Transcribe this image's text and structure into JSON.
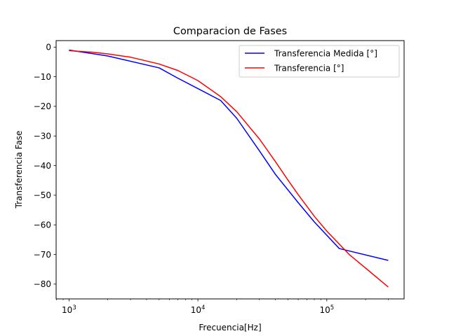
{
  "chart_data": {
    "type": "line",
    "title": "Comparacion de Fases",
    "xlabel": "Frecuencia[Hz]",
    "ylabel": "Transferencia Fase",
    "x_scale": "log",
    "xlim": [
      794,
      398000
    ],
    "ylim": [
      -85,
      2.2
    ],
    "x_ticks": [
      {
        "value": 1000,
        "base": "10",
        "exp": "3"
      },
      {
        "value": 10000,
        "base": "10",
        "exp": "4"
      },
      {
        "value": 100000,
        "base": "10",
        "exp": "5"
      }
    ],
    "y_ticks": [
      {
        "value": 0,
        "label": "0"
      },
      {
        "value": -10,
        "label": "−10"
      },
      {
        "value": -20,
        "label": "−20"
      },
      {
        "value": -30,
        "label": "−30"
      },
      {
        "value": -40,
        "label": "−40"
      },
      {
        "value": -50,
        "label": "−50"
      },
      {
        "value": -60,
        "label": "−60"
      },
      {
        "value": -70,
        "label": "−70"
      },
      {
        "value": -80,
        "label": "−80"
      }
    ],
    "grid": false,
    "legend_position": "top-right",
    "series": [
      {
        "name": "Transferencia Medida [°]",
        "color": "#0000ff",
        "x": [
          1000,
          2000,
          5000,
          7000,
          10000,
          15000,
          20000,
          30000,
          40000,
          60000,
          80000,
          125000,
          300000
        ],
        "y": [
          -1,
          -3,
          -7,
          -10.5,
          -14,
          -18,
          -24,
          -35,
          -43,
          -52.5,
          -59,
          -68,
          -72
        ]
      },
      {
        "name": "Transferencia [°]",
        "color": "#ff0000",
        "x": [
          1000,
          1500,
          2000,
          3000,
          5000,
          7000,
          10000,
          15000,
          20000,
          30000,
          40000,
          50000,
          60000,
          80000,
          100000,
          150000,
          200000,
          300000
        ],
        "y": [
          -1.2,
          -1.7,
          -2.3,
          -3.4,
          -5.7,
          -7.9,
          -11.3,
          -16.7,
          -21.8,
          -31,
          -38.7,
          -44.9,
          -49.8,
          -57.1,
          -62.1,
          -70.1,
          -74.6,
          -81
        ]
      }
    ]
  }
}
